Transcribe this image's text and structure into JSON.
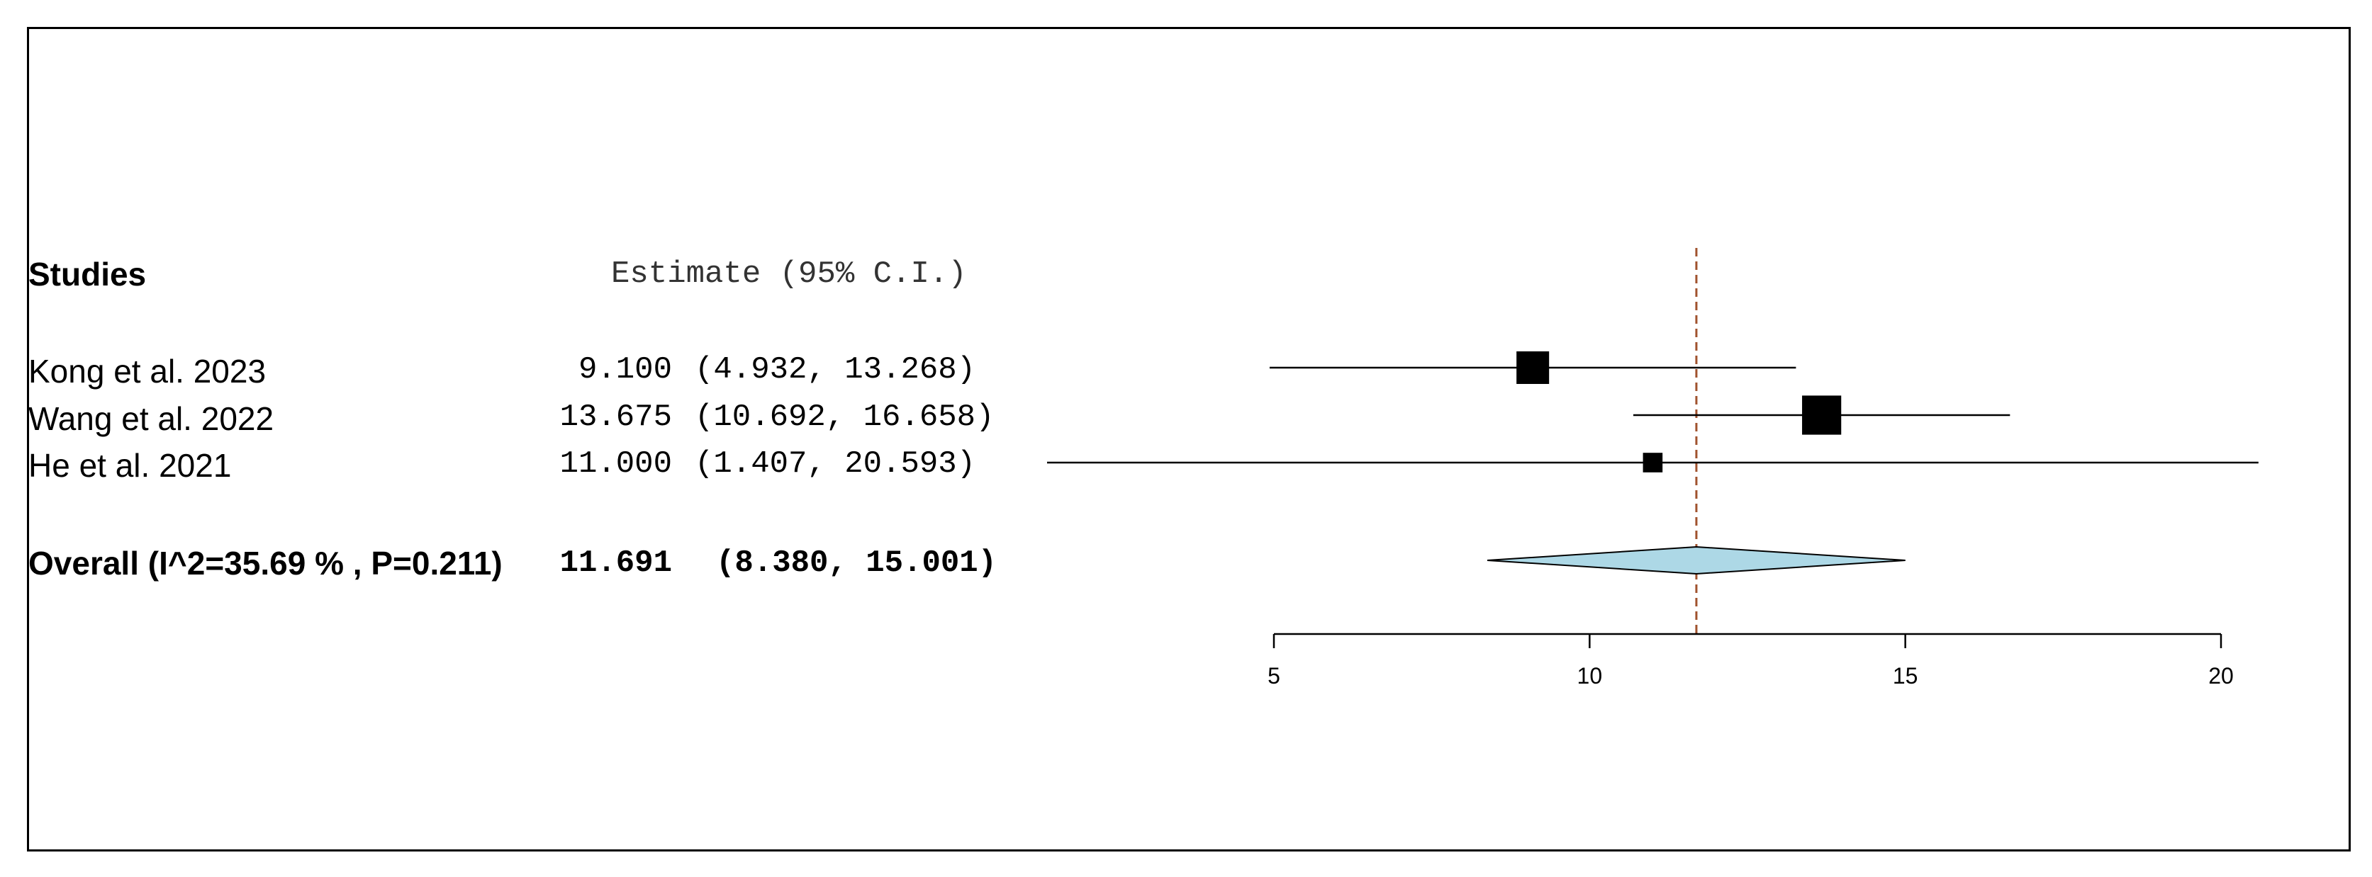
{
  "chart_data": {
    "type": "forest",
    "header": {
      "studies_label": "Studies",
      "estimate_label": "Estimate (95% C.I.)"
    },
    "studies": [
      {
        "label": "Kong et al. 2023",
        "estimate": 9.1,
        "lower": 4.932,
        "upper": 13.268,
        "est_text": "9.100",
        "ci_text": "(4.932, 13.268)",
        "weight": 1.0
      },
      {
        "label": "Wang et al. 2022",
        "estimate": 13.675,
        "lower": 10.692,
        "upper": 16.658,
        "est_text": "13.675",
        "ci_text": "(10.692, 16.658)",
        "weight": 1.2
      },
      {
        "label": "He et al. 2021",
        "estimate": 11.0,
        "lower": 1.407,
        "upper": 20.593,
        "est_text": "11.000",
        "ci_text": "(1.407, 20.593)",
        "weight": 0.6
      }
    ],
    "overall": {
      "label": "Overall (I^2=35.69 % , P=0.211)",
      "estimate": 11.691,
      "lower": 8.38,
      "upper": 15.001,
      "est_text": "11.691",
      "ci_text": "(8.380, 15.001)"
    },
    "x_axis": {
      "ticks": [
        5,
        10,
        15,
        20
      ],
      "tick_labels": [
        "5",
        "10",
        "15",
        "20"
      ],
      "range": [
        5,
        20
      ]
    },
    "colors": {
      "marker": "#000000",
      "diamond_fill": "#add8e6",
      "reference_line": "#a0522d"
    }
  }
}
